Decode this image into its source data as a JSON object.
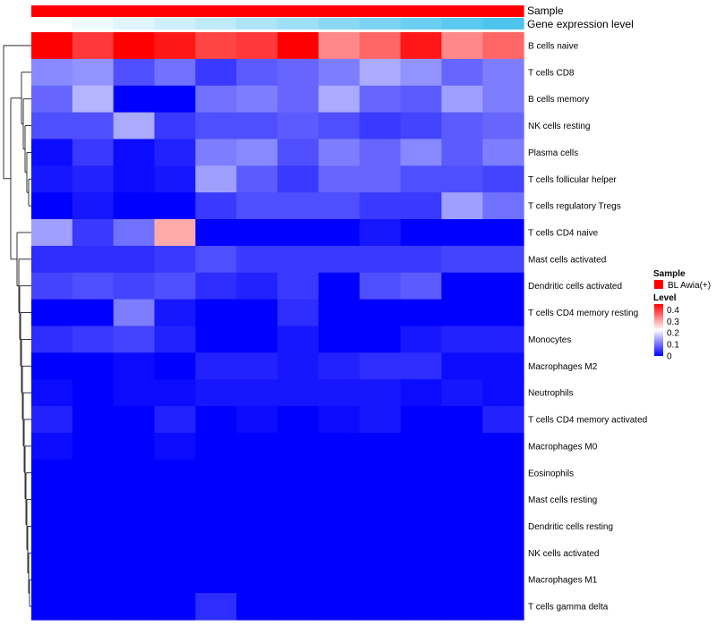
{
  "chart_data": {
    "type": "heatmap",
    "title": "",
    "xlabel": "",
    "ylabel": "",
    "rows": [
      "B cells naive",
      "T cells CD8",
      "B cells memory",
      "NK cells resting",
      "Plasma cells",
      "T cells follicular helper",
      "T cells regulatory  Tregs",
      "T cells CD4 naive",
      "Mast cells activated",
      "Dendritic cells activated",
      "T cells CD4 memory resting",
      "Monocytes",
      "Macrophages M2",
      "Neutrophils",
      "T cells CD4 memory activated",
      "Macrophages M0",
      "Eosinophils",
      "Mast cells resting",
      "Dendritic cells resting",
      "NK cells activated",
      "Macrophages M1",
      "T cells gamma delta"
    ],
    "values": [
      [
        0.45,
        0.4,
        0.45,
        0.43,
        0.39,
        0.4,
        0.45,
        0.33,
        0.36,
        0.43,
        0.33,
        0.36
      ],
      [
        0.12,
        0.13,
        0.07,
        0.1,
        0.05,
        0.08,
        0.09,
        0.11,
        0.15,
        0.13,
        0.09,
        0.11
      ],
      [
        0.09,
        0.16,
        0.0,
        0.0,
        0.1,
        0.11,
        0.09,
        0.15,
        0.09,
        0.08,
        0.14,
        0.11
      ],
      [
        0.07,
        0.07,
        0.15,
        0.05,
        0.07,
        0.07,
        0.08,
        0.07,
        0.05,
        0.06,
        0.08,
        0.09
      ],
      [
        0.01,
        0.05,
        0.01,
        0.03,
        0.11,
        0.12,
        0.07,
        0.11,
        0.09,
        0.12,
        0.08,
        0.11
      ],
      [
        0.02,
        0.03,
        0.01,
        0.02,
        0.14,
        0.08,
        0.05,
        0.09,
        0.09,
        0.07,
        0.07,
        0.06
      ],
      [
        0.0,
        0.02,
        0.0,
        0.0,
        0.05,
        0.07,
        0.07,
        0.07,
        0.05,
        0.05,
        0.14,
        0.1
      ],
      [
        0.14,
        0.05,
        0.1,
        0.3,
        0.0,
        0.0,
        0.0,
        0.0,
        0.02,
        0.0,
        0.0,
        0.0
      ],
      [
        0.04,
        0.04,
        0.04,
        0.05,
        0.07,
        0.05,
        0.05,
        0.05,
        0.05,
        0.05,
        0.06,
        0.06
      ],
      [
        0.06,
        0.07,
        0.06,
        0.07,
        0.04,
        0.03,
        0.05,
        0.0,
        0.07,
        0.08,
        0.0,
        0.0
      ],
      [
        0.0,
        0.0,
        0.11,
        0.02,
        0.0,
        0.0,
        0.04,
        0.0,
        0.0,
        0.0,
        0.0,
        0.0
      ],
      [
        0.04,
        0.05,
        0.06,
        0.03,
        0.0,
        0.0,
        0.02,
        0.0,
        0.0,
        0.02,
        0.03,
        0.03
      ],
      [
        0.0,
        0.0,
        0.01,
        0.0,
        0.03,
        0.03,
        0.02,
        0.03,
        0.04,
        0.04,
        0.01,
        0.01
      ],
      [
        0.01,
        0.0,
        0.01,
        0.01,
        0.02,
        0.02,
        0.02,
        0.02,
        0.02,
        0.01,
        0.02,
        0.01
      ],
      [
        0.03,
        0.0,
        0.0,
        0.03,
        0.0,
        0.01,
        0.0,
        0.01,
        0.02,
        0.0,
        0.0,
        0.03
      ],
      [
        0.01,
        0.0,
        0.0,
        0.01,
        0.0,
        0.0,
        0.0,
        0.0,
        0.0,
        0.0,
        0.0,
        0.0
      ],
      [
        0.0,
        0.0,
        0.0,
        0.0,
        0.0,
        0.0,
        0.0,
        0.0,
        0.0,
        0.0,
        0.0,
        0.0
      ],
      [
        0.0,
        0.0,
        0.0,
        0.0,
        0.0,
        0.0,
        0.0,
        0.0,
        0.0,
        0.0,
        0.0,
        0.0
      ],
      [
        0.0,
        0.0,
        0.0,
        0.0,
        0.0,
        0.0,
        0.0,
        0.0,
        0.0,
        0.0,
        0.0,
        0.0
      ],
      [
        0.0,
        0.0,
        0.0,
        0.0,
        0.0,
        0.0,
        0.0,
        0.0,
        0.0,
        0.0,
        0.0,
        0.0
      ],
      [
        0.0,
        0.0,
        0.0,
        0.0,
        0.0,
        0.0,
        0.0,
        0.0,
        0.0,
        0.0,
        0.0,
        0.0
      ],
      [
        0.0,
        0.0,
        0.0,
        0.0,
        0.04,
        0.0,
        0.0,
        0.0,
        0.0,
        0.0,
        0.0,
        0.0
      ]
    ],
    "color_scale": {
      "min": 0,
      "max": 0.45,
      "colors": [
        "#0000ff",
        "#ffffff",
        "#ff0000"
      ]
    },
    "annotations": [
      {
        "label": "Sample",
        "color": "#ff0000",
        "values": [
          "BL Awia(+)",
          "BL Awia(+)",
          "BL Awia(+)",
          "BL Awia(+)",
          "BL Awia(+)",
          "BL Awia(+)",
          "BL Awia(+)",
          "BL Awia(+)",
          "BL Awia(+)",
          "BL Awia(+)",
          "BL Awia(+)",
          "BL Awia(+)"
        ]
      },
      {
        "label": "Gene expression level",
        "levels": [
          0.0,
          0.09,
          0.18,
          0.27,
          0.36,
          0.45,
          0.55,
          0.64,
          0.73,
          0.82,
          0.91,
          1.0
        ],
        "colors": [
          "#ffffff",
          "#4cc4ee"
        ]
      }
    ],
    "legends": [
      {
        "title": "Sample",
        "items": [
          {
            "label": "BL Awia(+)",
            "color": "#ff0000"
          }
        ]
      },
      {
        "title": "Level",
        "ticks": [
          "0.4",
          "0.3",
          "0.2",
          "0.1",
          "0"
        ],
        "tick_values": [
          0.4,
          0.3,
          0.2,
          0.1,
          0
        ]
      }
    ],
    "row_dendrogram": true,
    "grid": false
  }
}
